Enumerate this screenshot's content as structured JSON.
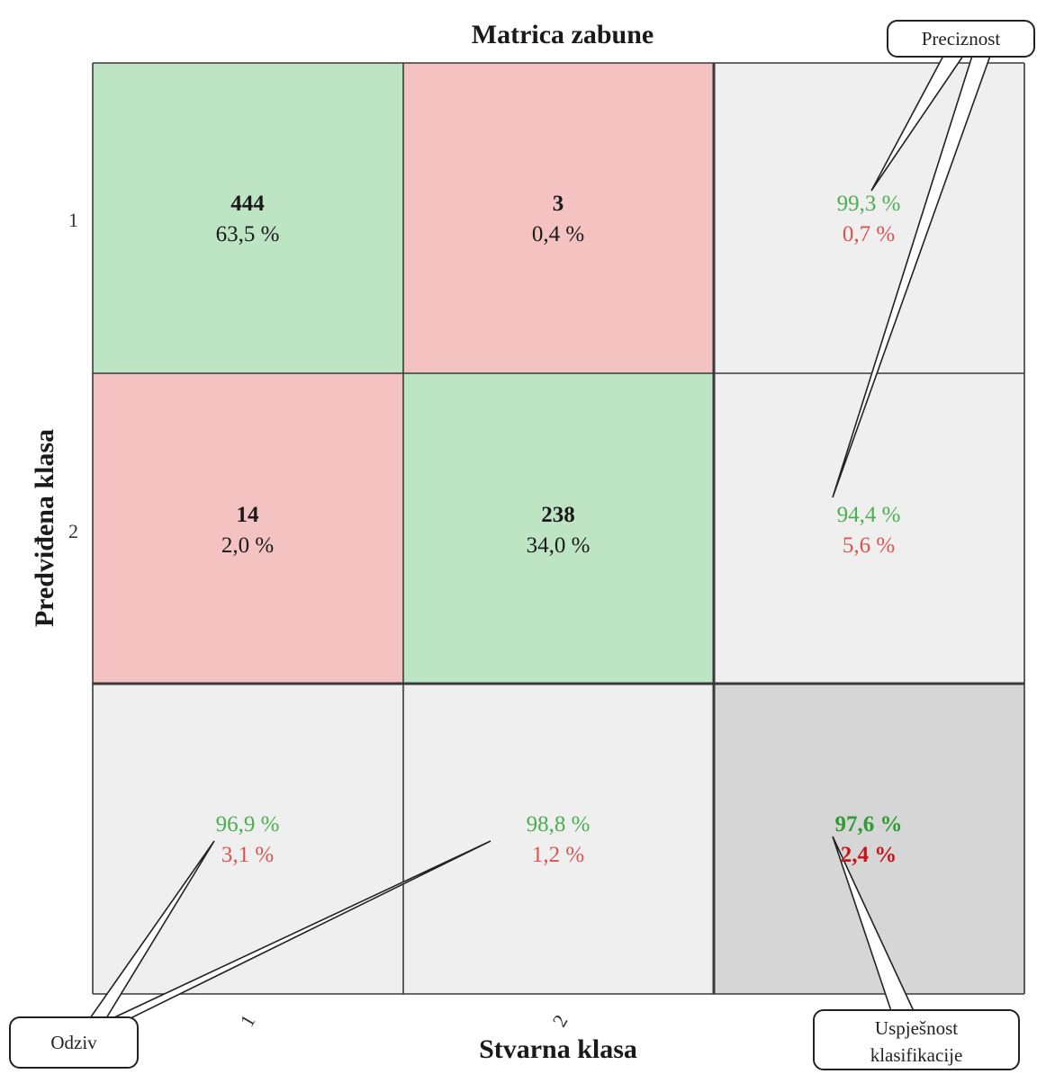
{
  "chart_data": {
    "type": "heatmap",
    "title": "Matrica zabune",
    "xlabel": "Stvarna klasa",
    "ylabel": "Predviđena klasa",
    "x_ticks": [
      "1",
      "2"
    ],
    "y_ticks": [
      "1",
      "2"
    ],
    "cells": [
      [
        {
          "count": "444",
          "percent": "63,5 %"
        },
        {
          "count": "3",
          "percent": "0,4 %"
        }
      ],
      [
        {
          "count": "14",
          "percent": "2,0 %"
        },
        {
          "count": "238",
          "percent": "34,0 %"
        }
      ]
    ],
    "precision": [
      {
        "correct": "99,3 %",
        "error": "0,7 %"
      },
      {
        "correct": "94,4 %",
        "error": "5,6 %"
      }
    ],
    "recall": [
      {
        "correct": "96,9 %",
        "error": "3,1 %"
      },
      {
        "correct": "98,8 %",
        "error": "1,2 %"
      }
    ],
    "overall": {
      "correct": "97,6 %",
      "error": "2,4 %"
    },
    "callouts": {
      "precision": "Preciznost",
      "recall": "Odziv",
      "accuracy_line1": "Uspješnost",
      "accuracy_line2": "klasifikacije"
    },
    "colors": {
      "correct_cell": "#bde5c3",
      "error_cell": "#f5c2c2",
      "summary_cell": "#efefef",
      "overall_cell": "#d6d6d6"
    }
  }
}
